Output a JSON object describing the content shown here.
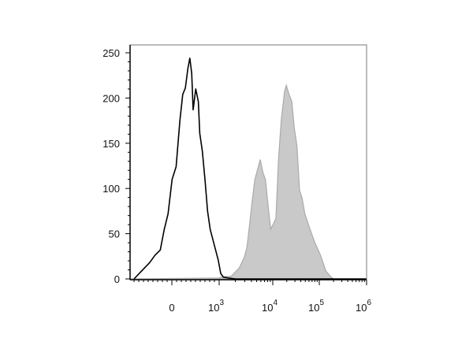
{
  "chart_data": {
    "type": "area",
    "title": "",
    "xlabel": "",
    "ylabel": "",
    "x_scale": "biexponential",
    "xlim": [
      -880,
      1000000
    ],
    "ylim": [
      0,
      260
    ],
    "grid": false,
    "y_ticks": [
      "0",
      "50",
      "100",
      "150",
      "200",
      "250"
    ],
    "y_tick_values": [
      0,
      50,
      100,
      150,
      200,
      250
    ],
    "x_ticks": [
      {
        "value": 0,
        "base": "0",
        "exp": ""
      },
      {
        "value": 1000,
        "base": "10",
        "exp": "3"
      },
      {
        "value": 10000,
        "base": "10",
        "exp": "4"
      },
      {
        "value": 100000,
        "base": "10",
        "exp": "5"
      },
      {
        "value": 1000000,
        "base": "10",
        "exp": "6"
      }
    ],
    "series": [
      {
        "style": "black-outline",
        "color": "#000000",
        "x": [
          -800,
          -690,
          -580,
          -470,
          -360,
          -245,
          -160,
          -80,
          5,
          90,
          170,
          230,
          285,
          340,
          380,
          420,
          450,
          505,
          560,
          590,
          645,
          700,
          755,
          810,
          895,
          980,
          1070,
          1200,
          1500,
          2000,
          1000000
        ],
        "y": [
          0,
          6,
          12,
          18,
          26,
          32,
          55,
          72,
          110,
          124,
          175,
          204,
          211,
          233,
          244,
          227,
          187,
          210,
          196,
          161,
          141,
          110,
          75,
          55,
          38,
          21,
          6,
          2,
          1,
          0,
          0
        ]
      },
      {
        "style": "gray-filled",
        "color": "#c8c8c8",
        "x": [
          -880,
          1000,
          1070,
          1680,
          2360,
          2950,
          3310,
          3710,
          4150,
          4640,
          5200,
          5830,
          6530,
          7310,
          8190,
          9170,
          10300,
          11700,
          13300,
          15200,
          17900,
          19600,
          22400,
          25700,
          29000,
          33100,
          37700,
          42900,
          48900,
          63300,
          79200,
          106700,
          137500,
          177800,
          201800,
          1000000
        ],
        "y": [
          0,
          1,
          2,
          3,
          12,
          24,
          35,
          61,
          87,
          110,
          121,
          132,
          118,
          110,
          81,
          55,
          61,
          67,
          132,
          175,
          207,
          214,
          204,
          196,
          167,
          147,
          98,
          89,
          72,
          55,
          41,
          26,
          9,
          2,
          0,
          0
        ]
      }
    ]
  }
}
